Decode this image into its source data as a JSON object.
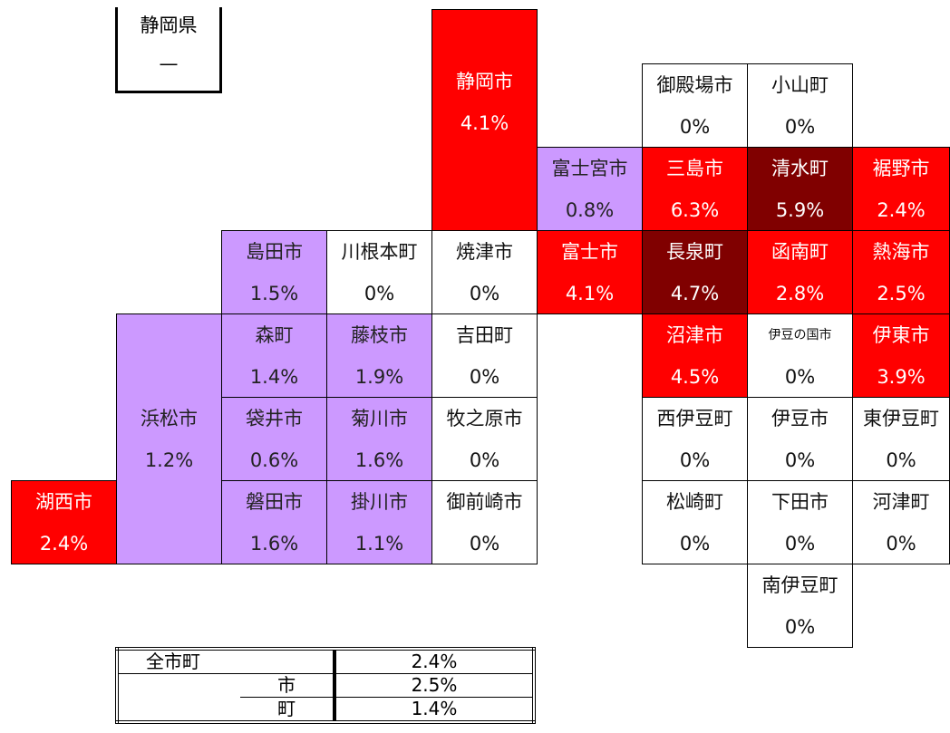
{
  "prefecture": {
    "name": "静岡県",
    "value": "—"
  },
  "tiles": [
    {
      "name": "静岡市",
      "value": "4.1%"
    },
    {
      "name": "御殿場市",
      "value": "0%"
    },
    {
      "name": "小山町",
      "value": "0%"
    },
    {
      "name": "富士宮市",
      "value": "0.8%"
    },
    {
      "name": "三島市",
      "value": "6.3%"
    },
    {
      "name": "清水町",
      "value": "5.9%"
    },
    {
      "name": "裾野市",
      "value": "2.4%"
    },
    {
      "name": "島田市",
      "value": "1.5%"
    },
    {
      "name": "川根本町",
      "value": "0%"
    },
    {
      "name": "焼津市",
      "value": "0%"
    },
    {
      "name": "富士市",
      "value": "4.1%"
    },
    {
      "name": "長泉町",
      "value": "4.7%"
    },
    {
      "name": "函南町",
      "value": "2.8%"
    },
    {
      "name": "熱海市",
      "value": "2.5%"
    },
    {
      "name": "浜松市",
      "value": "1.2%"
    },
    {
      "name": "森町",
      "value": "1.4%"
    },
    {
      "name": "藤枝市",
      "value": "1.9%"
    },
    {
      "name": "吉田町",
      "value": "0%"
    },
    {
      "name": "沼津市",
      "value": "4.5%"
    },
    {
      "name": "伊豆の国市",
      "value": "0%"
    },
    {
      "name": "伊東市",
      "value": "3.9%"
    },
    {
      "name": "袋井市",
      "value": "0.6%"
    },
    {
      "name": "菊川市",
      "value": "1.6%"
    },
    {
      "name": "牧之原市",
      "value": "0%"
    },
    {
      "name": "西伊豆町",
      "value": "0%"
    },
    {
      "name": "伊豆市",
      "value": "0%"
    },
    {
      "name": "東伊豆町",
      "value": "0%"
    },
    {
      "name": "湖西市",
      "value": "2.4%"
    },
    {
      "name": "磐田市",
      "value": "1.6%"
    },
    {
      "name": "掛川市",
      "value": "1.1%"
    },
    {
      "name": "御前崎市",
      "value": "0%"
    },
    {
      "name": "松崎町",
      "value": "0%"
    },
    {
      "name": "下田市",
      "value": "0%"
    },
    {
      "name": "河津町",
      "value": "0%"
    },
    {
      "name": "南伊豆町",
      "value": "0%"
    }
  ],
  "summary": {
    "rows": [
      [
        "全市町",
        "",
        "2.4%"
      ],
      [
        "",
        "市",
        "2.5%"
      ],
      [
        "",
        "町",
        "1.4%"
      ]
    ]
  }
}
